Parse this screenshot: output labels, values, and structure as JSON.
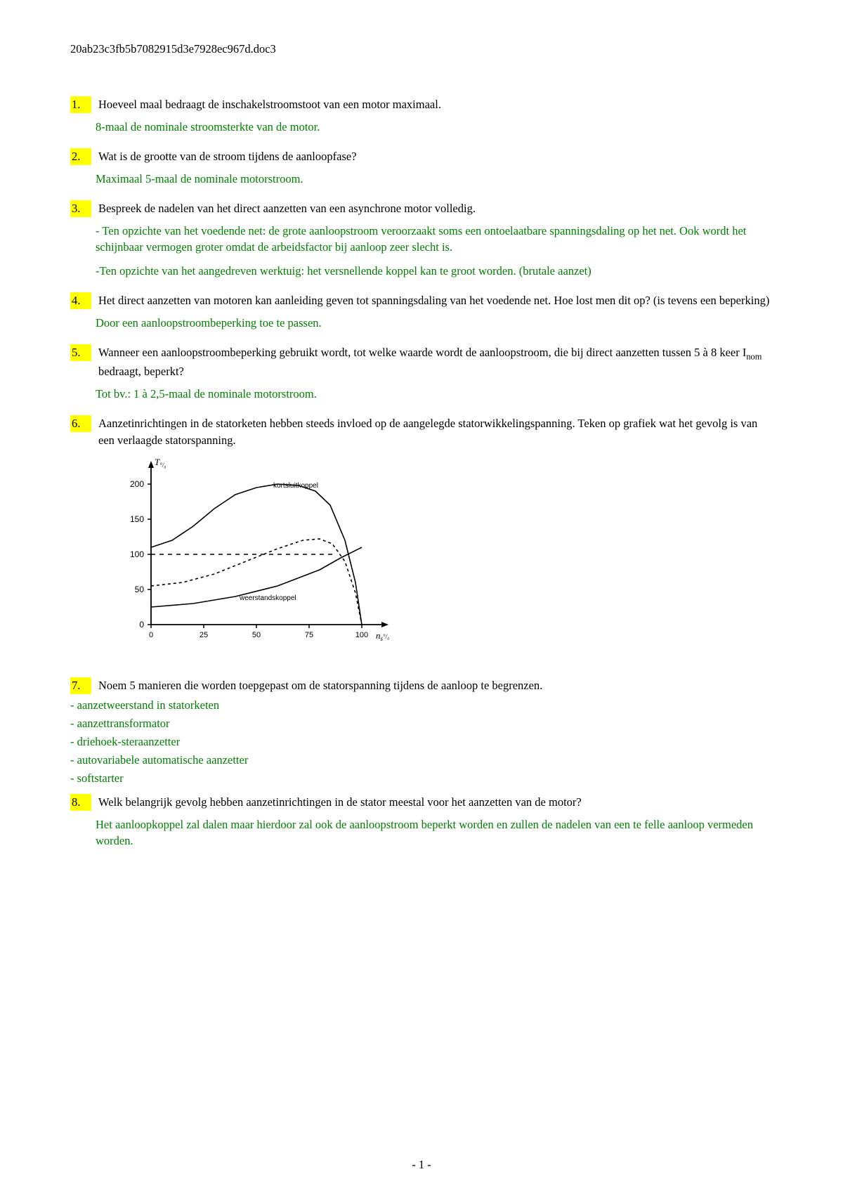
{
  "header": {
    "filename": "20ab23c3fb5b7082915d3e7928ec967d.doc3"
  },
  "colors": {
    "highlight": "#ffff00",
    "answer_text": "#008000",
    "question_text": "#000000",
    "page_bg": "#ffffff"
  },
  "fonts": {
    "family": "Times New Roman",
    "body_size_pt": 12.5
  },
  "questions": [
    {
      "num": "1.",
      "q": "Hoeveel maal bedraagt de inschakelstroomstoot van een motor maximaal.",
      "a": [
        "8-maal de nominale stroomsterkte van de motor."
      ]
    },
    {
      "num": "2.",
      "q": "Wat is de grootte van de stroom tijdens de aanloopfase?",
      "a": [
        "Maximaal 5-maal de nominale motorstroom."
      ]
    },
    {
      "num": "3.",
      "q": "Bespreek de nadelen van het direct aanzetten van een asynchrone motor volledig.",
      "a": [
        "- Ten opzichte van het voedende net: de grote aanloopstroom veroorzaakt soms een ontoelaatbare spanningsdaling op het net. Ook wordt het schijnbaar vermogen groter omdat de arbeidsfactor bij aanloop zeer slecht is.",
        "-Ten opzichte van het aangedreven werktuig: het versnellende koppel  kan te groot worden. (brutale aanzet)"
      ]
    },
    {
      "num": "4.",
      "q": "Het direct aanzetten van motoren kan aanleiding geven tot spanningsdaling van het voedende net. Hoe lost men dit op? (is tevens een beperking)",
      "a": [
        "Door een aanloopstroombeperking toe te passen."
      ]
    },
    {
      "num": "5.",
      "q_html": "Wanneer een aanloopstroombeperking gebruikt wordt, tot welke waarde wordt de aanloopstroom, die bij direct aanzetten tussen 5 à 8 keer I<sub>nom</sub> bedraagt, beperkt?",
      "a": [
        "Tot bv.: 1 à 2,5-maal de nominale motorstroom."
      ]
    },
    {
      "num": "6.",
      "q": "Aanzetinrichtingen in de statorketen hebben steeds invloed op de aangelegde statorwikkelingspanning. Teken op grafiek wat het gevolg is van een verlaagde statorspanning.",
      "graph": {
        "type": "line",
        "x_label": "n_s °/₀",
        "y_label": "T °/₀",
        "xlim": [
          0,
          110
        ],
        "ylim": [
          0,
          225
        ],
        "xticks": [
          0,
          25,
          50,
          75,
          100
        ],
        "yticks": [
          0,
          50,
          100,
          150,
          200
        ],
        "axis_color": "#000000",
        "line_color": "#000000",
        "line_width": 1.6,
        "series": [
          {
            "name": "kortsluitkoppel",
            "label": "kortsluitkoppel",
            "label_pos": [
              58,
              195
            ],
            "dash": "none",
            "points": [
              [
                0,
                110
              ],
              [
                10,
                120
              ],
              [
                20,
                140
              ],
              [
                30,
                165
              ],
              [
                40,
                185
              ],
              [
                50,
                195
              ],
              [
                60,
                200
              ],
              [
                70,
                198
              ],
              [
                78,
                190
              ],
              [
                85,
                170
              ],
              [
                92,
                120
              ],
              [
                97,
                60
              ],
              [
                100,
                0
              ]
            ]
          },
          {
            "name": "lowered-voltage",
            "dash": "4,4",
            "points": [
              [
                0,
                55
              ],
              [
                15,
                60
              ],
              [
                30,
                72
              ],
              [
                45,
                90
              ],
              [
                60,
                108
              ],
              [
                72,
                120
              ],
              [
                80,
                122
              ],
              [
                86,
                115
              ],
              [
                92,
                90
              ],
              [
                97,
                45
              ],
              [
                100,
                0
              ]
            ]
          },
          {
            "name": "weerstandskoppel",
            "label": "weerstandskoppel",
            "label_pos": [
              42,
              35
            ],
            "dash": "none",
            "points": [
              [
                0,
                25
              ],
              [
                20,
                30
              ],
              [
                40,
                40
              ],
              [
                60,
                55
              ],
              [
                80,
                78
              ],
              [
                90,
                95
              ],
              [
                100,
                110
              ]
            ]
          },
          {
            "name": "h-dash-100",
            "dash": "6,6",
            "points": [
              [
                0,
                100
              ],
              [
                88,
                100
              ]
            ]
          }
        ],
        "label_fontsize": 9
      }
    },
    {
      "num": "7.",
      "q": "Noem 5 manieren die worden toepgepast om de statorspanning tijdens de aanloop te begrenzen.",
      "a": [
        "- aanzetweerstand in statorketen",
        "- aanzettransformator",
        "- driehoek-steraanzetter",
        "- autovariabele automatische aanzetter",
        "- softstarter"
      ]
    },
    {
      "num": "8.",
      "q": "Welk belangrijk gevolg hebben aanzetinrichtingen in de stator meestal voor het aanzetten van de motor?",
      "a": [
        "Het aanloopkoppel zal dalen maar hierdoor zal ook de aanloopstroom beperkt worden en zullen de nadelen van een te felle aanloop vermeden worden."
      ]
    }
  ],
  "page_number": "- 1 -"
}
